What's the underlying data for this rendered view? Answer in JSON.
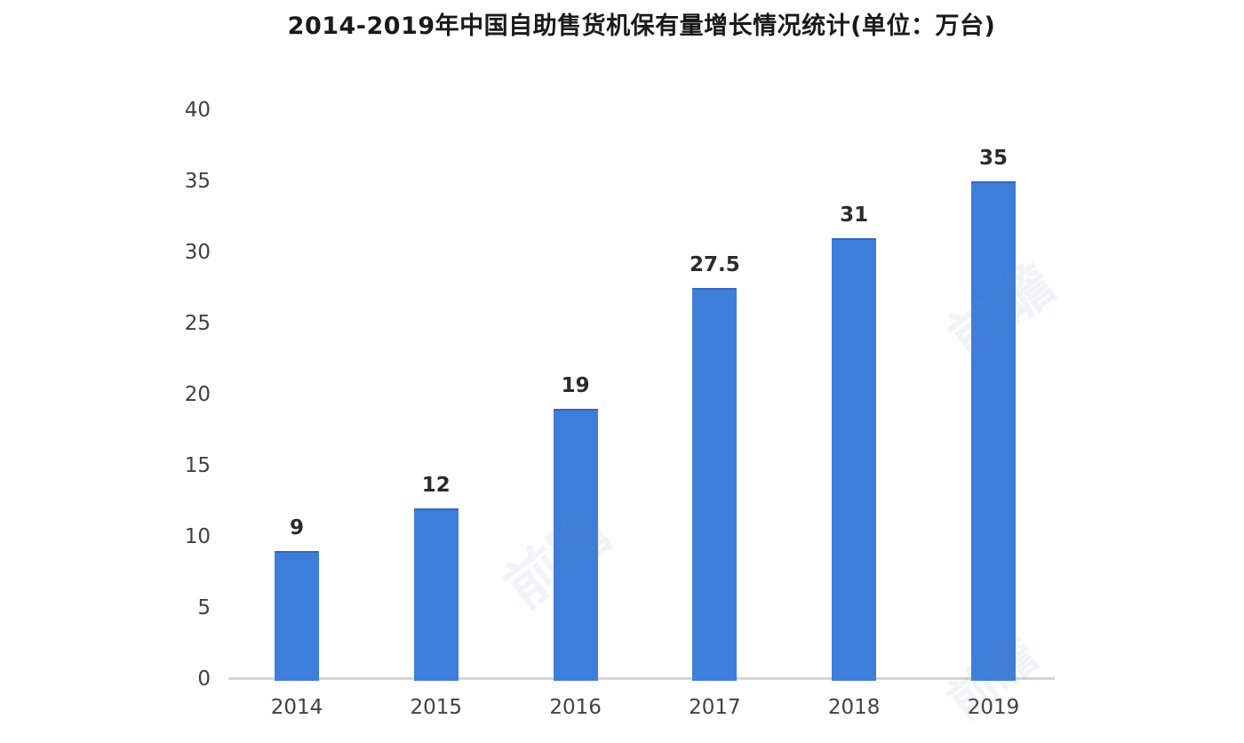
{
  "page": {
    "background": "#ffffff"
  },
  "chart_data": {
    "type": "bar",
    "title": "2014-2019年中国自助售货机保有量增长情况统计(单位：万台)",
    "categories": [
      "2014",
      "2015",
      "2016",
      "2017",
      "2018",
      "2019"
    ],
    "values": [
      9,
      12,
      19,
      27.5,
      31,
      35
    ],
    "value_labels": [
      "9",
      "12",
      "19",
      "27.5",
      "31",
      "35"
    ],
    "xlabel": "",
    "ylabel": "",
    "ylim": [
      0,
      40
    ],
    "yticks": [
      0,
      5,
      10,
      15,
      20,
      25,
      30,
      35,
      40
    ],
    "grid": false,
    "legend": false,
    "colors": {
      "bar": "#3d7edb",
      "bar_top_edge": "#3269bf",
      "axis_line": "#d6d6d6",
      "tick_label": "#414141",
      "value_label": "#2b2b2b",
      "title": "#1a1a1a"
    }
  },
  "watermark": {
    "text": "前瞻",
    "color": "rgba(110, 140, 185, 0.10)"
  }
}
